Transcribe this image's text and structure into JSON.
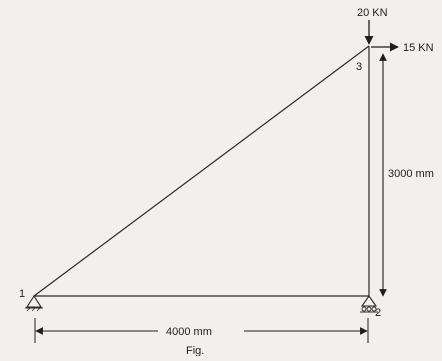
{
  "truss": {
    "node_labels": [
      "1",
      "2",
      "3"
    ],
    "loads": {
      "vertical": "20 KN",
      "horizontal": "15 KN"
    },
    "dimensions": {
      "width": "4000 mm",
      "height": "3000 mm"
    },
    "caption": "Fig."
  },
  "colors": {
    "ink": "#1e1e1e",
    "paper": "#f2f0ec"
  }
}
